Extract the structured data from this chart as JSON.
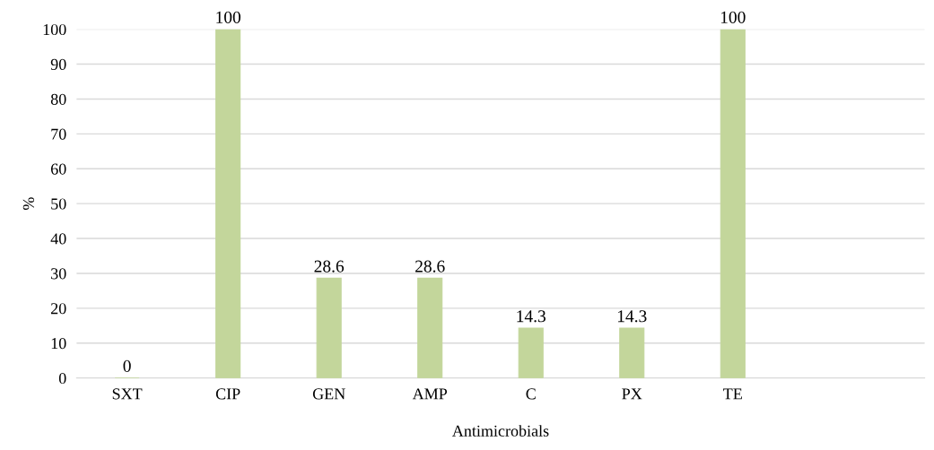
{
  "chart_data": {
    "type": "bar",
    "xlabel": "Antimicrobials",
    "ylabel": "%",
    "categories": [
      "SXT",
      "CIP",
      "GEN",
      "AMP",
      "C",
      "PX",
      "TE"
    ],
    "values": [
      0,
      100,
      28.6,
      28.6,
      14.3,
      14.3,
      100
    ],
    "color": "#c3d69b",
    "ylim": [
      0,
      100
    ],
    "yticks": [
      0,
      10,
      20,
      30,
      40,
      50,
      60,
      70,
      80,
      90,
      100
    ],
    "grid": "y",
    "data_labels": true,
    "legend": false
  }
}
